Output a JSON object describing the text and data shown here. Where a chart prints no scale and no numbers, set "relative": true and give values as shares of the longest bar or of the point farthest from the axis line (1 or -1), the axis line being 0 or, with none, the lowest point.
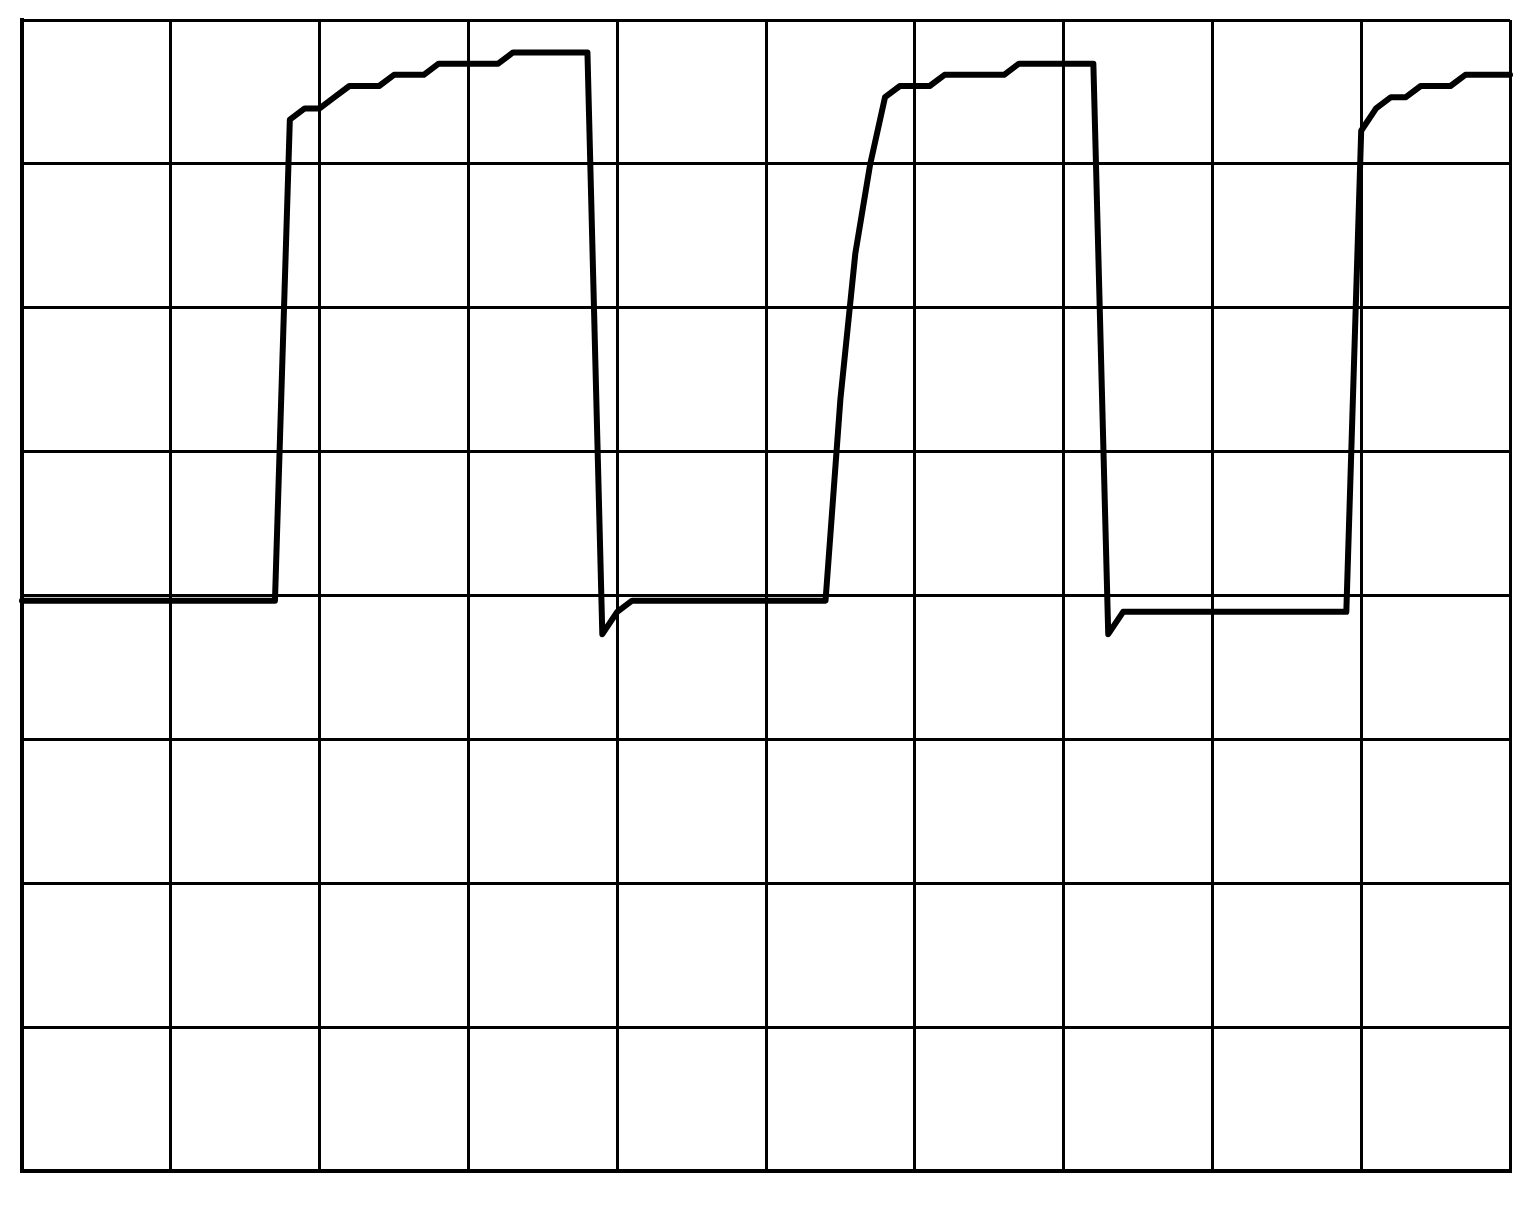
{
  "chart_data": {
    "type": "line",
    "relative": true,
    "grid": true,
    "legend": false,
    "marker": "none",
    "line_style": "solid",
    "categories": [
      null,
      null,
      null,
      null,
      null,
      null,
      null,
      null,
      null,
      null,
      null,
      null,
      null,
      null,
      null,
      null,
      null,
      null,
      null,
      null,
      null,
      null,
      null,
      null,
      null,
      null,
      null,
      null,
      null,
      null,
      null,
      null,
      null,
      null,
      null,
      null,
      null,
      null,
      null,
      null,
      null,
      null,
      null,
      null,
      null,
      null,
      null,
      null,
      null,
      null,
      null,
      null,
      null,
      null,
      null,
      null,
      null,
      null,
      null,
      null,
      null,
      null,
      null,
      null,
      null,
      null,
      null,
      null,
      null,
      null,
      null,
      null,
      null,
      null,
      null,
      null,
      null,
      null,
      null,
      null,
      null,
      null,
      null,
      null,
      null,
      null,
      null,
      null,
      null,
      null,
      null,
      null,
      null,
      null,
      null,
      null,
      null,
      null,
      null,
      null,
      null
    ],
    "series": [
      {
        "color": "#000000",
        "values": [
          0.51,
          0.51,
          0.51,
          0.51,
          0.51,
          0.51,
          0.51,
          0.51,
          0.51,
          0.51,
          0.51,
          0.51,
          0.51,
          0.51,
          0.51,
          0.51,
          0.51,
          0.51,
          0.94,
          0.95,
          0.95,
          0.96,
          0.97,
          0.97,
          0.97,
          0.98,
          0.98,
          0.98,
          0.99,
          0.99,
          0.99,
          0.99,
          0.99,
          1.0,
          1.0,
          1.0,
          1.0,
          1.0,
          1.0,
          0.48,
          0.5,
          0.51,
          0.51,
          0.51,
          0.51,
          0.51,
          0.51,
          0.51,
          0.51,
          0.51,
          0.51,
          0.51,
          0.51,
          0.51,
          0.51,
          0.69,
          0.82,
          0.9,
          0.96,
          0.97,
          0.97,
          0.97,
          0.98,
          0.98,
          0.98,
          0.98,
          0.98,
          0.99,
          0.99,
          0.99,
          0.99,
          0.99,
          0.99,
          0.48,
          0.5,
          0.5,
          0.5,
          0.5,
          0.5,
          0.5,
          0.5,
          0.5,
          0.5,
          0.5,
          0.5,
          0.5,
          0.5,
          0.5,
          0.5,
          0.5,
          0.93,
          0.95,
          0.96,
          0.96,
          0.97,
          0.97,
          0.97,
          0.98,
          0.98,
          0.98,
          0.98
        ]
      }
    ]
  }
}
